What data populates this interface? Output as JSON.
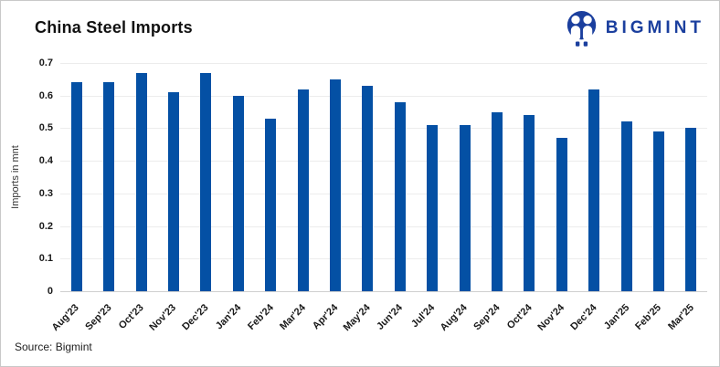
{
  "header": {
    "title": "China Steel Imports",
    "logo": {
      "brand": "BIGMINT",
      "icon": "bigmint-people-icon",
      "color": "#1b3f9e"
    }
  },
  "footer": {
    "source": "Source: Bigmint"
  },
  "chart_data": {
    "type": "bar",
    "title": "China Steel Imports",
    "xlabel": "",
    "ylabel": "Imports in mnt",
    "ylim": [
      0,
      0.7
    ],
    "ytick_labels": [
      "0",
      "0.1",
      "0.2",
      "0.3",
      "0.4",
      "0.5",
      "0.6",
      "0.7"
    ],
    "grid": true,
    "legend": false,
    "bar_color": "#0450a4",
    "gridline_color": "#ececec",
    "axisline_color": "#cfcfcf",
    "categories": [
      "Aug'23",
      "Sep'23",
      "Oct'23",
      "Nov'23",
      "Dec'23",
      "Jan'24",
      "Feb'24",
      "Mar'24",
      "Apr'24",
      "May'24",
      "Jun'24",
      "Jul'24",
      "Aug'24",
      "Sep'24",
      "Oct'24",
      "Nov'24",
      "Dec'24",
      "Jan'25",
      "Feb'25",
      "Mar'25"
    ],
    "values": [
      0.64,
      0.64,
      0.67,
      0.61,
      0.67,
      0.6,
      0.53,
      0.62,
      0.65,
      0.63,
      0.58,
      0.51,
      0.51,
      0.55,
      0.54,
      0.47,
      0.62,
      0.52,
      0.49,
      0.5
    ]
  }
}
